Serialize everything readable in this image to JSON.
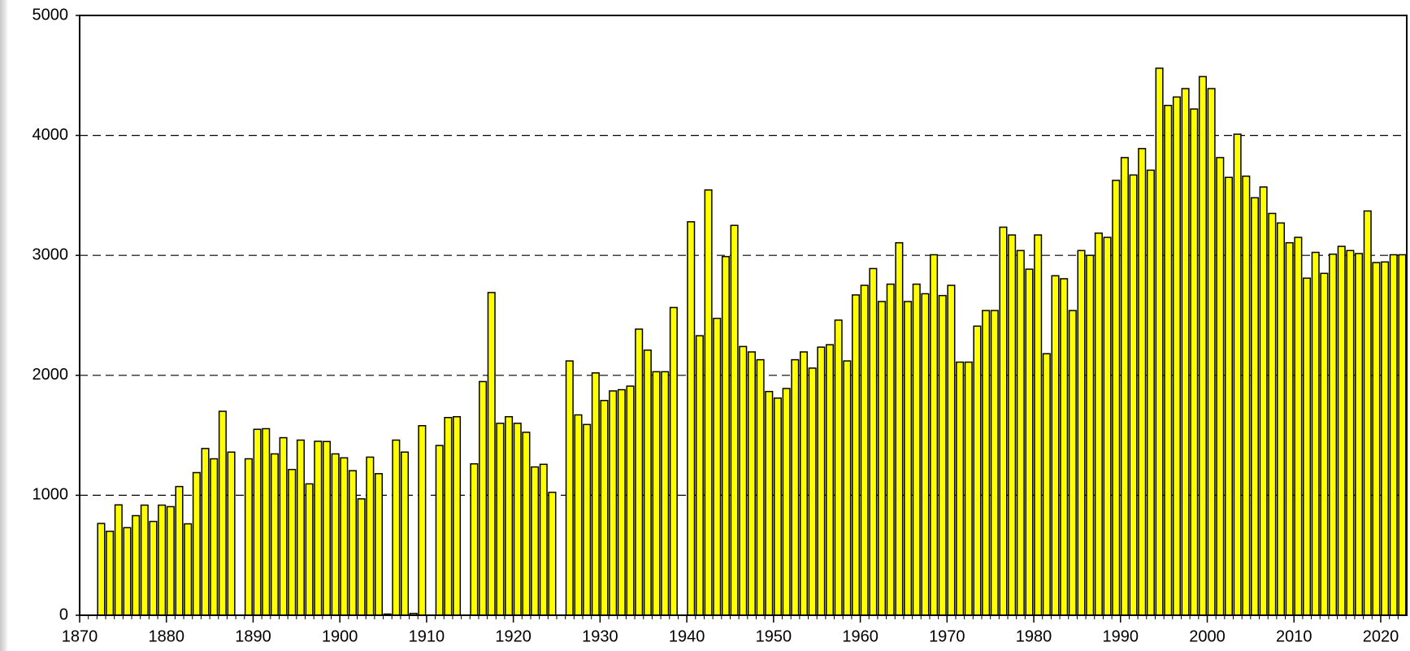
{
  "chart_data": {
    "type": "bar",
    "x": [
      1870,
      1871,
      1872,
      1873,
      1874,
      1875,
      1876,
      1877,
      1878,
      1879,
      1880,
      1881,
      1882,
      1883,
      1884,
      1885,
      1886,
      1887,
      1888,
      1889,
      1890,
      1891,
      1892,
      1893,
      1894,
      1895,
      1896,
      1897,
      1898,
      1899,
      1900,
      1901,
      1902,
      1903,
      1904,
      1905,
      1906,
      1907,
      1908,
      1909,
      1910,
      1911,
      1912,
      1913,
      1914,
      1915,
      1916,
      1917,
      1918,
      1919,
      1920,
      1921,
      1922,
      1923,
      1924,
      1925,
      1926,
      1927,
      1928,
      1929,
      1930,
      1931,
      1932,
      1933,
      1934,
      1935,
      1936,
      1937,
      1938,
      1939,
      1940,
      1941,
      1942,
      1943,
      1944,
      1945,
      1946,
      1947,
      1948,
      1949,
      1950,
      1951,
      1952,
      1953,
      1954,
      1955,
      1956,
      1957,
      1958,
      1959,
      1960,
      1961,
      1962,
      1963,
      1964,
      1965,
      1966,
      1967,
      1968,
      1969,
      1970,
      1971,
      1972,
      1973,
      1974,
      1975,
      1976,
      1977,
      1978,
      1979,
      1980,
      1981,
      1982,
      1983,
      1984,
      1985,
      1986,
      1987,
      1988,
      1989,
      1990,
      1991,
      1992,
      1993,
      1994,
      1995,
      1996,
      1997,
      1998,
      1999,
      2000,
      2001,
      2002,
      2003,
      2004,
      2005,
      2006,
      2007,
      2008,
      2009,
      2010,
      2011,
      2012,
      2013,
      2014,
      2015,
      2016,
      2017,
      2018,
      2019,
      2020,
      2021,
      2022
    ],
    "values": [
      null,
      null,
      765,
      700,
      920,
      730,
      830,
      918,
      782,
      918,
      905,
      1073,
      762,
      1189,
      1390,
      1304,
      1700,
      1360,
      null,
      1304,
      1550,
      1555,
      1345,
      1480,
      1215,
      1460,
      1095,
      1450,
      1448,
      1345,
      1312,
      1205,
      970,
      1318,
      1180,
      10,
      1460,
      1360,
      15,
      1580,
      null,
      1415,
      1648,
      1655,
      null,
      1262,
      1948,
      2690,
      1600,
      1655,
      1600,
      1525,
      1236,
      1258,
      1025,
      null,
      2120,
      1670,
      1590,
      2020,
      1790,
      1870,
      1880,
      1910,
      2385,
      2210,
      2030,
      2030,
      2565,
      null,
      3280,
      2330,
      3545,
      2475,
      2990,
      3250,
      2240,
      2195,
      2130,
      1865,
      1810,
      1890,
      2130,
      2195,
      2060,
      2235,
      2255,
      2460,
      2120,
      2670,
      2750,
      2890,
      2615,
      2760,
      3105,
      2615,
      2760,
      2680,
      3005,
      2665,
      2750,
      2110,
      2110,
      2410,
      2540,
      2540,
      3235,
      3170,
      3040,
      2885,
      3170,
      2180,
      2830,
      2805,
      2540,
      3040,
      3000,
      3185,
      3150,
      3625,
      3815,
      3670,
      3890,
      3710,
      4560,
      4250,
      4320,
      4390,
      4220,
      4490,
      4390,
      3815,
      3650,
      4010,
      3660,
      3480,
      3570,
      3350,
      3270,
      3105,
      3150,
      2810,
      3025,
      2850,
      3010,
      3075,
      3040,
      3015,
      3370,
      2940,
      2945,
      3005,
      3005
    ],
    "color": "#ffff00",
    "xlim": [
      1870,
      2023
    ],
    "xticks": [
      1870,
      1880,
      1890,
      1900,
      1910,
      1920,
      1930,
      1940,
      1950,
      1960,
      1970,
      1980,
      1990,
      2000,
      2010,
      2020
    ],
    "ylim": [
      0,
      5000
    ],
    "yticks": [
      0,
      1000,
      2000,
      3000,
      4000,
      5000
    ],
    "grid": true
  }
}
